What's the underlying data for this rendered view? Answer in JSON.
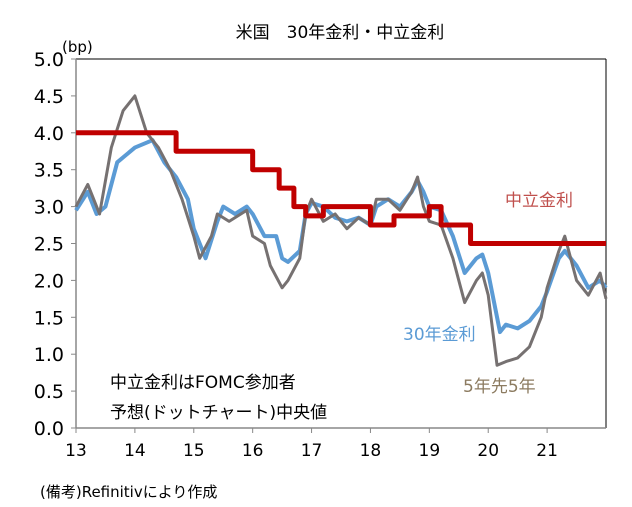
{
  "chart_data": {
    "type": "line",
    "title": "米国　30年金利・中立金利",
    "unit_label": "(bp)",
    "ylim": [
      0,
      5.0
    ],
    "xlim": [
      13,
      22
    ],
    "yticks": [
      "0.0",
      "0.5",
      "1.0",
      "1.5",
      "2.0",
      "2.5",
      "3.0",
      "3.5",
      "4.0",
      "4.5",
      "5.0"
    ],
    "xticks": [
      "13",
      "14",
      "15",
      "16",
      "17",
      "18",
      "19",
      "20",
      "21"
    ],
    "grid": false,
    "note_lines": [
      "中立金利はFOMC参加者",
      "予想(ドットチャート)中央値"
    ],
    "source": "(備考)Refinitivにより作成",
    "series": [
      {
        "name": "中立金利",
        "color": "#c00000",
        "step": true,
        "x": [
          13.0,
          14.7,
          16.0,
          16.45,
          16.7,
          16.9,
          17.2,
          18.0,
          18.4,
          19.0,
          19.2,
          19.7,
          22.0
        ],
        "values": [
          4.0,
          3.75,
          3.5,
          3.25,
          3.0,
          2.875,
          3.0,
          2.75,
          2.875,
          3.0,
          2.75,
          2.5,
          2.5
        ]
      },
      {
        "name": "30年金利",
        "color": "#5b9bd5",
        "x": [
          13.0,
          13.2,
          13.35,
          13.5,
          13.7,
          14.0,
          14.3,
          14.5,
          14.7,
          14.9,
          15.0,
          15.1,
          15.2,
          15.4,
          15.5,
          15.7,
          15.9,
          16.0,
          16.2,
          16.4,
          16.5,
          16.6,
          16.8,
          16.9,
          17.0,
          17.2,
          17.4,
          17.6,
          17.8,
          18.0,
          18.1,
          18.3,
          18.5,
          18.7,
          18.8,
          18.9,
          19.0,
          19.2,
          19.4,
          19.6,
          19.8,
          19.9,
          20.0,
          20.2,
          20.3,
          20.5,
          20.7,
          20.9,
          21.0,
          21.2,
          21.3,
          21.5,
          21.7,
          21.9,
          22.0
        ],
        "values": [
          2.95,
          3.2,
          2.9,
          3.0,
          3.6,
          3.8,
          3.9,
          3.6,
          3.4,
          3.1,
          2.7,
          2.5,
          2.3,
          2.8,
          3.0,
          2.9,
          3.0,
          2.9,
          2.6,
          2.6,
          2.3,
          2.25,
          2.4,
          2.9,
          3.05,
          3.0,
          2.85,
          2.8,
          2.85,
          2.75,
          3.0,
          3.1,
          3.0,
          3.2,
          3.35,
          3.2,
          3.0,
          2.95,
          2.6,
          2.1,
          2.3,
          2.35,
          2.1,
          1.3,
          1.4,
          1.35,
          1.45,
          1.65,
          1.85,
          2.3,
          2.4,
          2.2,
          1.9,
          2.0,
          1.9
        ]
      },
      {
        "name": "5年先5年",
        "color": "#767171",
        "x": [
          13.0,
          13.2,
          13.4,
          13.6,
          13.8,
          14.0,
          14.2,
          14.4,
          14.6,
          14.8,
          15.0,
          15.1,
          15.3,
          15.4,
          15.6,
          15.9,
          16.0,
          16.2,
          16.3,
          16.5,
          16.6,
          16.8,
          16.9,
          17.0,
          17.2,
          17.4,
          17.6,
          17.8,
          18.0,
          18.1,
          18.3,
          18.5,
          18.7,
          18.8,
          18.9,
          19.0,
          19.2,
          19.4,
          19.6,
          19.8,
          19.9,
          20.0,
          20.15,
          20.3,
          20.5,
          20.7,
          20.9,
          21.0,
          21.2,
          21.3,
          21.5,
          21.7,
          21.9,
          22.0
        ],
        "values": [
          3.0,
          3.3,
          2.9,
          3.8,
          4.3,
          4.5,
          4.0,
          3.8,
          3.5,
          3.1,
          2.6,
          2.3,
          2.6,
          2.9,
          2.8,
          2.95,
          2.6,
          2.5,
          2.2,
          1.9,
          2.0,
          2.3,
          2.9,
          3.1,
          2.8,
          2.9,
          2.7,
          2.85,
          2.75,
          3.1,
          3.1,
          2.95,
          3.2,
          3.4,
          3.0,
          2.8,
          2.75,
          2.3,
          1.7,
          2.0,
          2.1,
          1.8,
          0.85,
          0.9,
          0.95,
          1.1,
          1.5,
          1.9,
          2.4,
          2.6,
          2.0,
          1.8,
          2.1,
          1.75
        ]
      }
    ]
  }
}
